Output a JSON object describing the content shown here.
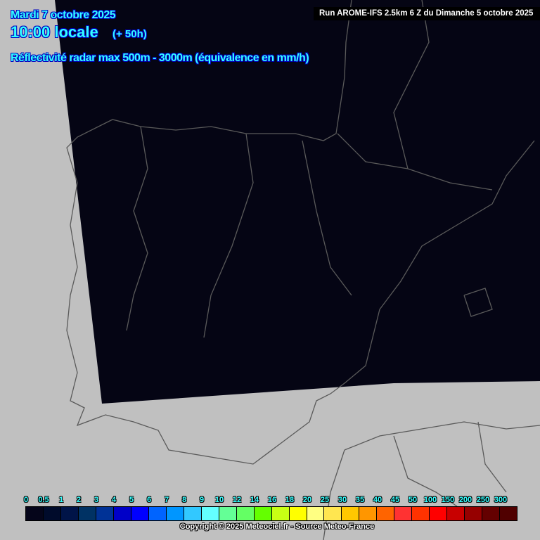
{
  "header": {
    "date": "Mardi 7 octobre 2025",
    "time": "10:00 locale",
    "lead": "(+ 50h)",
    "parameter": "Réflectivité radar max 500m - 3000m (équivalence en mm/h)",
    "run": "Run AROME-IFS 2.5km 6 Z du Dimanche 5 octobre 2025"
  },
  "map": {
    "domain_color": "#050514",
    "outside_color": "#c0c0c0",
    "border_color": "#5a5a5a"
  },
  "legend": {
    "labels": [
      "0",
      "0.5",
      "1",
      "2",
      "3",
      "4",
      "5",
      "6",
      "7",
      "8",
      "9",
      "10",
      "12",
      "14",
      "16",
      "18",
      "20",
      "25",
      "30",
      "35",
      "40",
      "45",
      "50",
      "100",
      "150",
      "200",
      "250",
      "300"
    ],
    "colors": [
      "#05051a",
      "#000b2b",
      "#001448",
      "#003264",
      "#003296",
      "#0000c8",
      "#0000ff",
      "#0064ff",
      "#0096ff",
      "#32c8ff",
      "#64ffff",
      "#64ff96",
      "#64ff64",
      "#64ff00",
      "#c8ff14",
      "#ffff00",
      "#ffff82",
      "#ffe650",
      "#ffc800",
      "#ff9600",
      "#ff6400",
      "#ff3232",
      "#ff3200",
      "#ff0000",
      "#c80000",
      "#960000",
      "#640000",
      "#500000"
    ]
  },
  "footer": {
    "copyright": "Copyright © 2025 Meteociel.fr - Source Meteo-France"
  }
}
